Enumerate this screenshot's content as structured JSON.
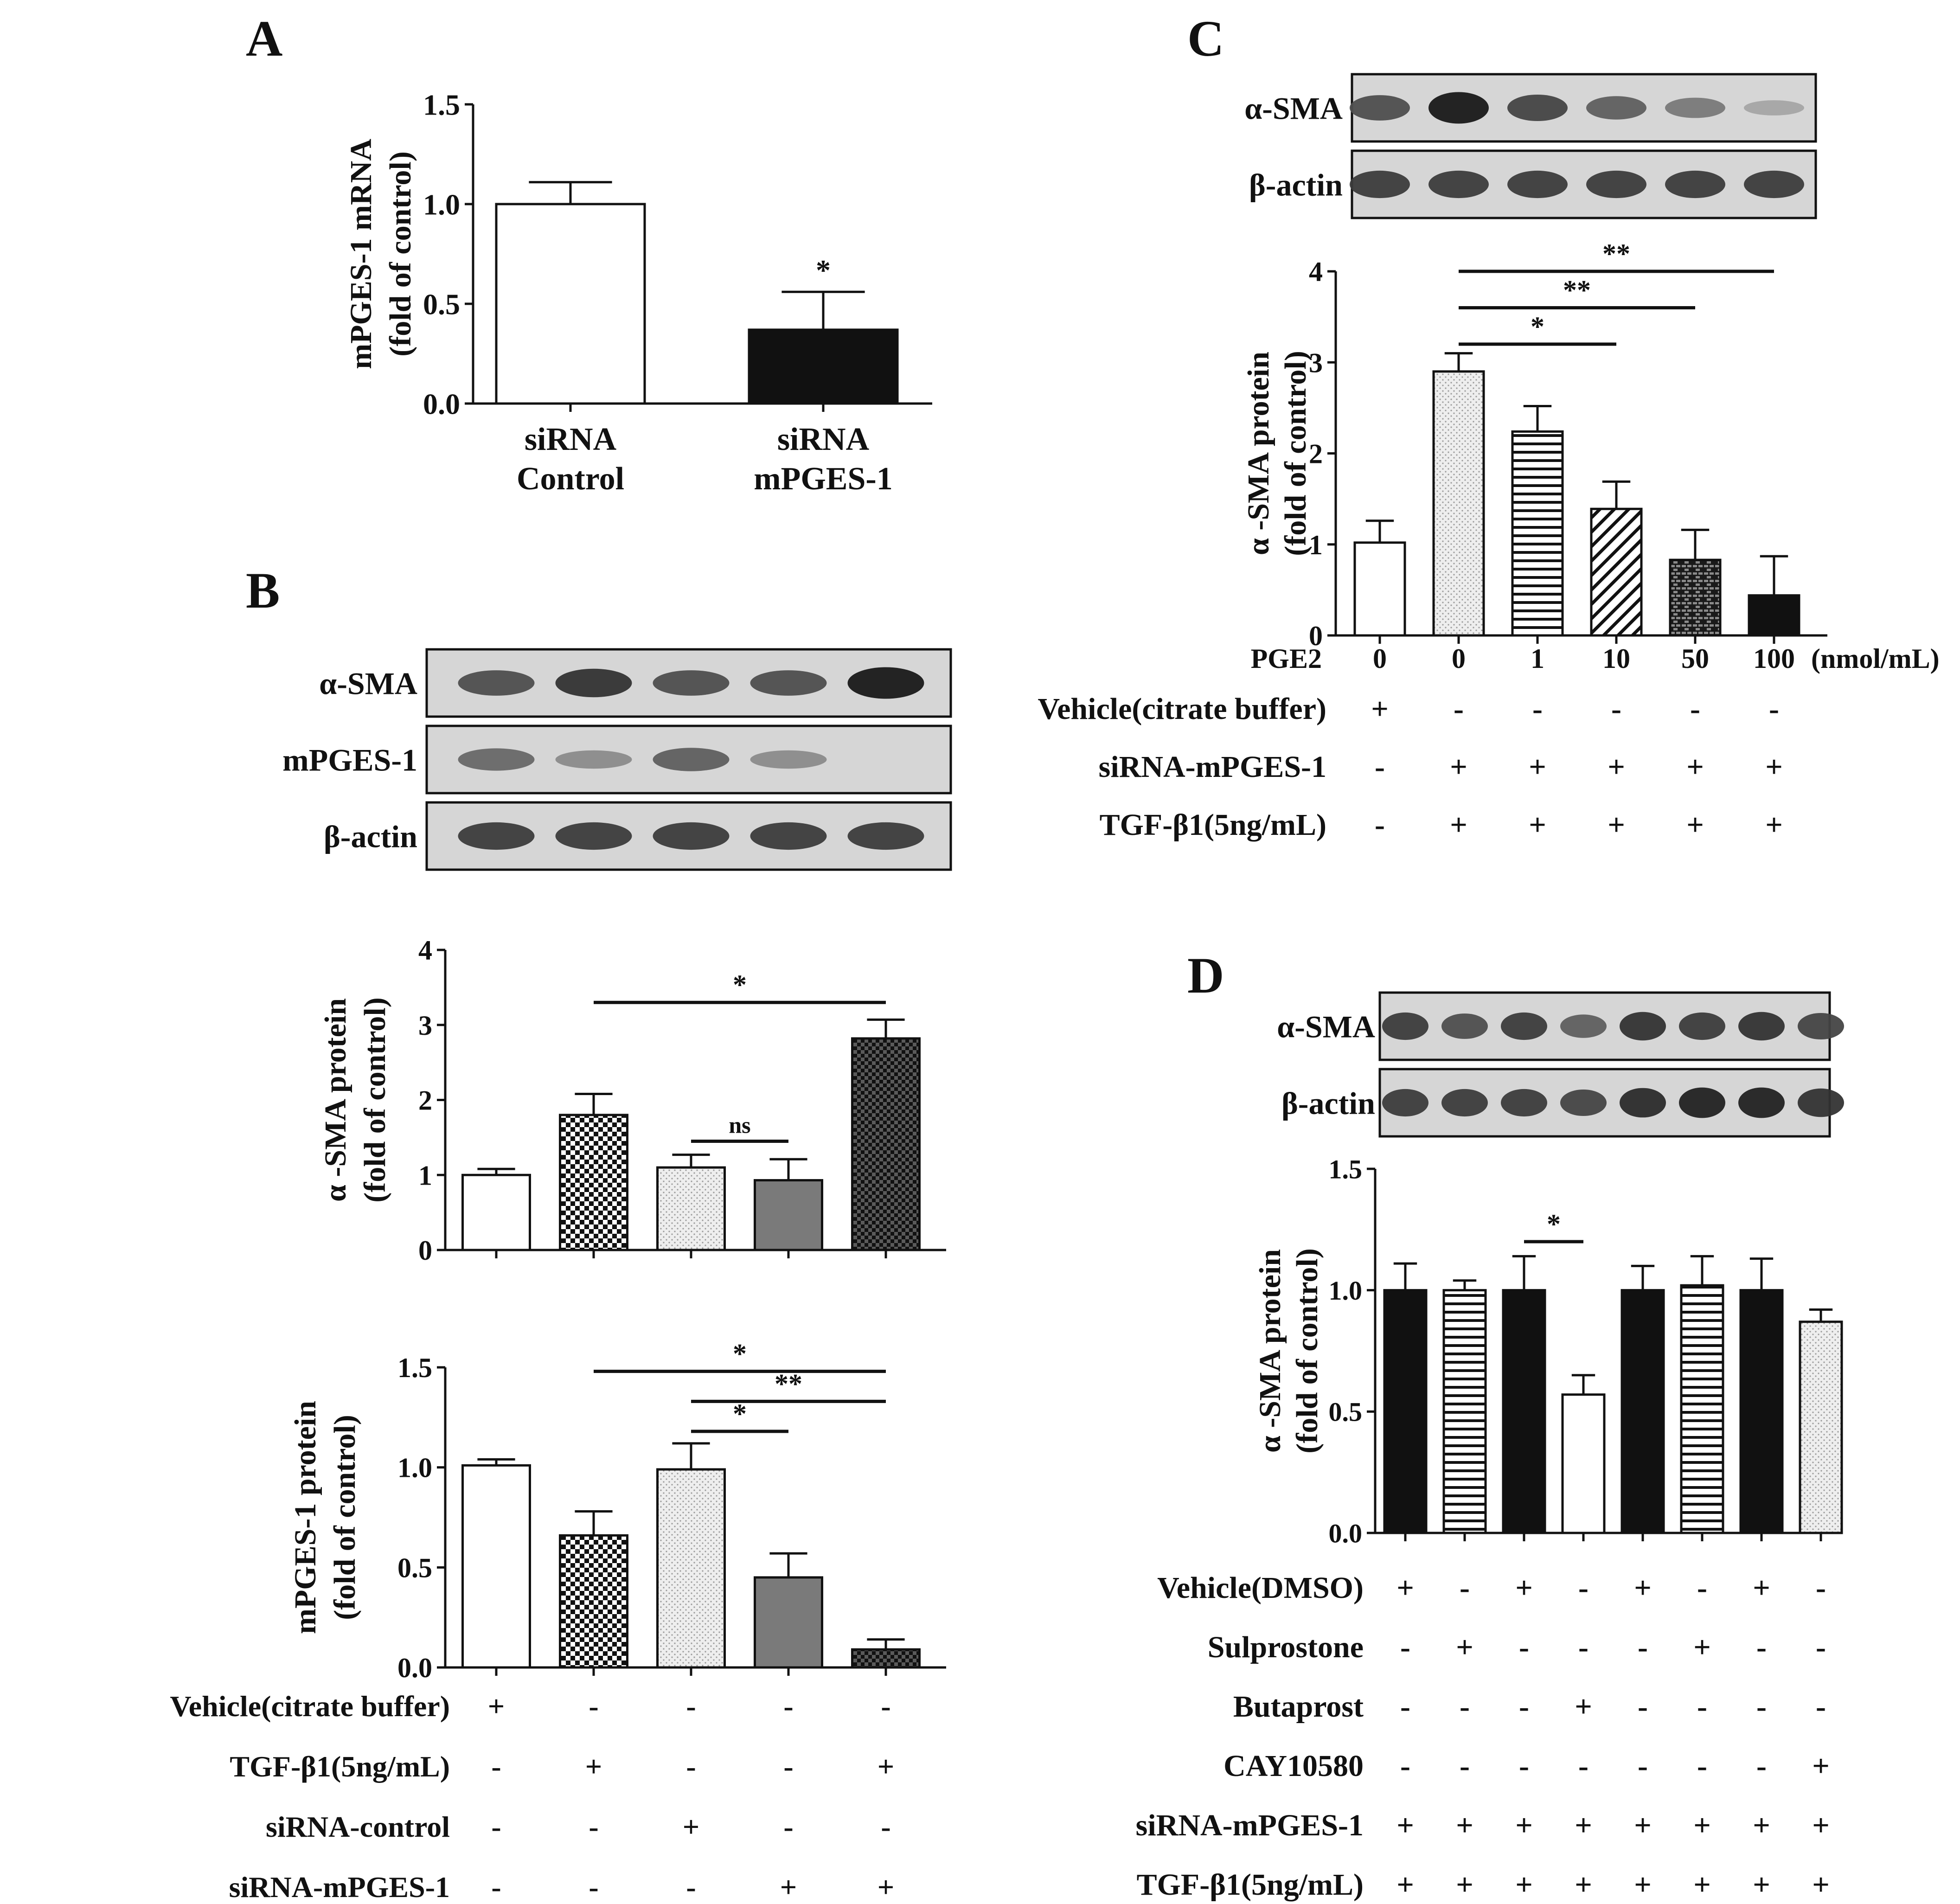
{
  "colors": {
    "ink": "#111111",
    "dark_gray": "#7a7a7a",
    "light_dot": "#e4e4e4",
    "blot_bg": "#d7d7d7",
    "band": "#2a2a2a"
  },
  "chart_data": [
    {
      "panel": "A",
      "type": "bar",
      "title": "",
      "ylabel_line1": "mPGES-1 mRNA",
      "ylabel_line2": "(fold of control)",
      "ylim": [
        0,
        1.5
      ],
      "yticks": [
        "0.0",
        "0.5",
        "1.0",
        "1.5"
      ],
      "ytick_values": [
        0,
        0.5,
        1.0,
        1.5
      ],
      "categories": [
        [
          "siRNA",
          "Control"
        ],
        [
          "siRNA",
          "mPGES-1"
        ]
      ],
      "values": [
        1.0,
        0.37
      ],
      "errors": [
        0.11,
        0.19
      ],
      "fills": [
        "white",
        "black"
      ],
      "annotations": [
        {
          "bar": 1,
          "text": "*"
        }
      ]
    },
    {
      "panel": "B-top",
      "type": "bar",
      "ylabel_line1": "α -SMA protein",
      "ylabel_line2": "(fold of control)",
      "ylim": [
        0,
        4
      ],
      "yticks": [
        "0",
        "1",
        "2",
        "3",
        "4"
      ],
      "ytick_values": [
        0,
        1,
        2,
        3,
        4
      ],
      "values": [
        1.0,
        1.8,
        1.1,
        0.93,
        2.82
      ],
      "errors": [
        0.08,
        0.28,
        0.17,
        0.28,
        0.25
      ],
      "fills": [
        "white",
        "check",
        "lightdot",
        "gray",
        "darkcheck"
      ],
      "significance": [
        {
          "from": 1,
          "to": 4,
          "label": "*",
          "y": 3.3
        },
        {
          "from": 2,
          "to": 3,
          "label": "ns",
          "y": 1.45
        }
      ]
    },
    {
      "panel": "B-bottom",
      "type": "bar",
      "ylabel_line1": "mPGES-1 protein",
      "ylabel_line2": "(fold of control)",
      "ylim": [
        0,
        1.5
      ],
      "yticks": [
        "0.0",
        "0.5",
        "1.0",
        "1.5"
      ],
      "ytick_values": [
        0,
        0.5,
        1.0,
        1.5
      ],
      "values": [
        1.01,
        0.66,
        0.99,
        0.45,
        0.09
      ],
      "errors": [
        0.03,
        0.12,
        0.13,
        0.12,
        0.05
      ],
      "fills": [
        "white",
        "check",
        "lightdot",
        "gray",
        "darkcheck"
      ],
      "significance": [
        {
          "from": 1,
          "to": 4,
          "label": "*",
          "y": 1.48
        },
        {
          "from": 2,
          "to": 4,
          "label": "**",
          "y": 1.33
        },
        {
          "from": 2,
          "to": 3,
          "label": "*",
          "y": 1.18
        }
      ],
      "conditions": [
        {
          "label": "Vehicle(citrate buffer)",
          "marks": [
            "+",
            "-",
            "-",
            "-",
            "-"
          ]
        },
        {
          "label": "TGF-β1(5ng/mL)",
          "marks": [
            "-",
            "+",
            "-",
            "-",
            "+"
          ]
        },
        {
          "label": "siRNA-control",
          "marks": [
            "-",
            "-",
            "+",
            "-",
            "-"
          ]
        },
        {
          "label": "siRNA-mPGES-1",
          "marks": [
            "-",
            "-",
            "-",
            "+",
            "+"
          ]
        }
      ]
    },
    {
      "panel": "C",
      "type": "bar",
      "ylabel_line1": "α -SMA protein",
      "ylabel_line2": "(fold of control)",
      "ylim": [
        0,
        4
      ],
      "yticks": [
        "0",
        "1",
        "2",
        "3",
        "4"
      ],
      "ytick_values": [
        0,
        1,
        2,
        3,
        4
      ],
      "values": [
        1.02,
        2.9,
        2.24,
        1.39,
        0.83,
        0.44
      ],
      "errors": [
        0.24,
        0.2,
        0.28,
        0.3,
        0.33,
        0.43
      ],
      "fills": [
        "white",
        "lightdot",
        "hlines",
        "diag",
        "brick",
        "black"
      ],
      "significance": [
        {
          "from": 1,
          "to": 5,
          "label": "**",
          "y": 4.0
        },
        {
          "from": 1,
          "to": 4,
          "label": "**",
          "y": 3.6
        },
        {
          "from": 1,
          "to": 3,
          "label": "*",
          "y": 3.2
        }
      ],
      "pge2_label": "PGE2",
      "pge2_doses": [
        "0",
        "0",
        "1",
        "10",
        "50",
        "100"
      ],
      "pge2_unit": "(nmol/mL)",
      "conditions": [
        {
          "label": "Vehicle(citrate buffer)",
          "marks": [
            "+",
            "-",
            "-",
            "-",
            "-",
            "-"
          ]
        },
        {
          "label": "siRNA-mPGES-1",
          "marks": [
            "-",
            "+",
            "+",
            "+",
            "+",
            "+"
          ]
        },
        {
          "label": "TGF-β1(5ng/mL)",
          "marks": [
            "-",
            "+",
            "+",
            "+",
            "+",
            "+"
          ]
        }
      ]
    },
    {
      "panel": "D",
      "type": "bar",
      "ylabel_line1": "α -SMA protein",
      "ylabel_line2": "(fold of control)",
      "ylim": [
        0,
        1.5
      ],
      "yticks": [
        "0.0",
        "0.5",
        "1.0",
        "1.5"
      ],
      "ytick_values": [
        0,
        0.5,
        1.0,
        1.5
      ],
      "values": [
        1.0,
        1.0,
        1.0,
        0.57,
        1.0,
        1.02,
        1.0,
        0.87
      ],
      "errors": [
        0.11,
        0.04,
        0.14,
        0.08,
        0.1,
        0.12,
        0.13,
        0.05
      ],
      "fills": [
        "black",
        "hlines",
        "black",
        "white",
        "black",
        "hlines",
        "black",
        "lightdot"
      ],
      "significance": [
        {
          "from": 2,
          "to": 3,
          "label": "*",
          "y": 1.2
        }
      ],
      "conditions": [
        {
          "label": "Vehicle(DMSO)",
          "marks": [
            "+",
            "-",
            "+",
            "-",
            "+",
            "-",
            "+",
            "-"
          ]
        },
        {
          "label": "Sulprostone",
          "marks": [
            "-",
            "+",
            "-",
            "-",
            "-",
            "+",
            "-",
            "-"
          ]
        },
        {
          "label": "Butaprost",
          "marks": [
            "-",
            "-",
            "-",
            "+",
            "-",
            "-",
            "-",
            "-"
          ]
        },
        {
          "label": "CAY10580",
          "marks": [
            "-",
            "-",
            "-",
            "-",
            "-",
            "-",
            "-",
            "+"
          ]
        },
        {
          "label": "siRNA-mPGES-1",
          "marks": [
            "+",
            "+",
            "+",
            "+",
            "+",
            "+",
            "+",
            "+"
          ]
        },
        {
          "label": "TGF-β1(5ng/mL)",
          "marks": [
            "+",
            "+",
            "+",
            "+",
            "+",
            "+",
            "+",
            "+"
          ]
        }
      ]
    }
  ],
  "panels": {
    "a": "A",
    "b": "B",
    "c": "C",
    "d": "D"
  },
  "blots": {
    "B": [
      {
        "label": "α-SMA",
        "intensity": [
          0.7,
          0.85,
          0.7,
          0.7,
          1.0
        ]
      },
      {
        "label": "mPGES-1",
        "intensity": [
          0.55,
          0.35,
          0.6,
          0.35,
          0.0
        ]
      },
      {
        "label": "β-actin",
        "intensity": [
          0.8,
          0.8,
          0.8,
          0.8,
          0.8
        ]
      }
    ],
    "C": [
      {
        "label": "α-SMA",
        "intensity": [
          0.7,
          1.0,
          0.75,
          0.6,
          0.45,
          0.2
        ]
      },
      {
        "label": "β-actin",
        "intensity": [
          0.8,
          0.8,
          0.8,
          0.8,
          0.8,
          0.8
        ]
      }
    ],
    "D": [
      {
        "label": "α-SMA",
        "intensity": [
          0.8,
          0.7,
          0.8,
          0.6,
          0.85,
          0.8,
          0.85,
          0.75
        ]
      },
      {
        "label": "β-actin",
        "intensity": [
          0.8,
          0.8,
          0.8,
          0.75,
          0.9,
          0.95,
          0.95,
          0.85
        ]
      }
    ]
  }
}
